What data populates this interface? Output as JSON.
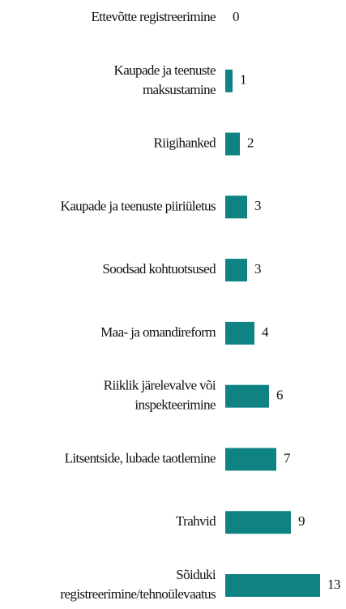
{
  "chart_data": {
    "type": "barh",
    "categories": [
      "Ettevõtte registreerimine",
      "Kaupade ja teenuste\nmaksustamine",
      "Riigihanked",
      "Kaupade ja teenuste piiriületus",
      "Soodsad kohtuotsused",
      "Maa- ja omandireform",
      "Riiklik järelevalve või\ninspekteerimine",
      "Litsentside, lubade taotlemine",
      "Trahvid",
      "Sõiduki\nregistreerimine/tehnoülevaatus"
    ],
    "values": [
      0,
      1,
      2,
      3,
      3,
      4,
      6,
      7,
      9,
      13
    ],
    "color": "#0f8383",
    "xlim": [
      0,
      13
    ]
  }
}
